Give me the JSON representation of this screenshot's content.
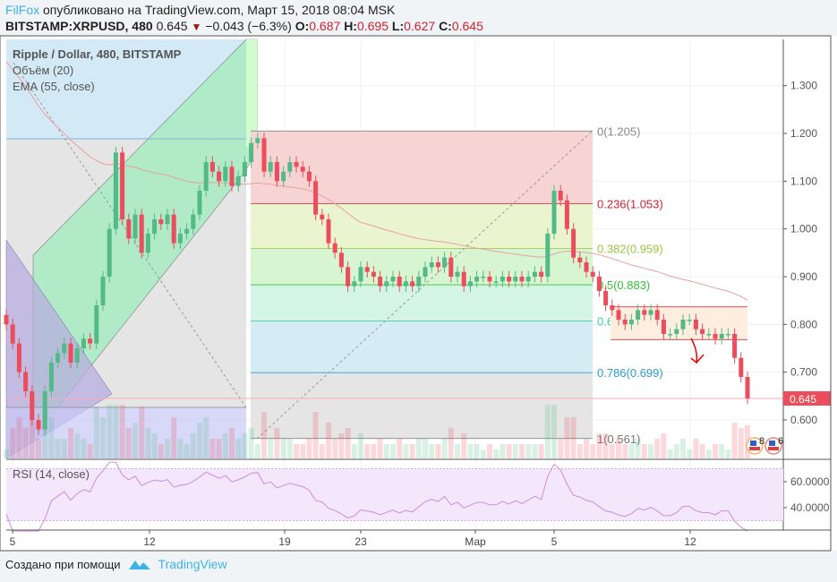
{
  "header": {
    "author": "FilFox",
    "published": "опубликовано на TradingView.com, Март 15, 2018 08:04 MSK",
    "symbol": "BITSTAMP:XRPUSD, 480",
    "last": "0.645",
    "change": "−0.043 (−6.3%)",
    "o_label": "O:",
    "o": "0.687",
    "h_label": "H:",
    "h": "0.695",
    "l_label": "L:",
    "l": "0.627",
    "c_label": "C:",
    "c": "0.645"
  },
  "legend": {
    "title": "Ripple / Dollar, 480, BITSTAMP",
    "volume": "Объём (20)",
    "ema": "EMA (55, close)",
    "rsi": "RSI (14, close)"
  },
  "footer": {
    "created": "Создано при помощи",
    "brand": "TradingView"
  },
  "colors": {
    "up": "#53b987",
    "down": "#eb4d5c",
    "ema": "#e8a0a0",
    "rsi": "#c98de0",
    "accent": "#3bb3e4"
  },
  "chart_data": {
    "type": "candlestick",
    "interval": "480",
    "price_axis": {
      "ticks": [
        "1.300",
        "1.200",
        "1.100",
        "1.000",
        "0.900",
        "0.800",
        "0.700",
        "0.600"
      ],
      "range": [
        0.52,
        1.38
      ],
      "last_label": "0.645"
    },
    "rsi_axis": {
      "ticks": [
        "60.0000",
        "40.0000"
      ],
      "bands": [
        30,
        70
      ]
    },
    "date_ticks": [
      "5",
      "12",
      "19",
      "23",
      "Мар",
      "5",
      "12"
    ],
    "closes": [
      0.8,
      0.76,
      0.7,
      0.66,
      0.6,
      0.58,
      0.66,
      0.72,
      0.74,
      0.76,
      0.72,
      0.75,
      0.77,
      0.76,
      0.84,
      0.9,
      1.0,
      1.16,
      1.02,
      0.98,
      1.03,
      0.95,
      0.99,
      1.02,
      1.01,
      1.03,
      0.97,
      0.99,
      1.0,
      1.03,
      1.08,
      1.14,
      1.12,
      1.1,
      1.13,
      1.09,
      1.11,
      1.14,
      1.18,
      1.19,
      1.12,
      1.14,
      1.1,
      1.12,
      1.14,
      1.13,
      1.12,
      1.1,
      1.03,
      1.02,
      0.97,
      0.95,
      0.92,
      0.88,
      0.89,
      0.92,
      0.91,
      0.9,
      0.88,
      0.89,
      0.9,
      0.88,
      0.89,
      0.88,
      0.9,
      0.92,
      0.93,
      0.92,
      0.94,
      0.9,
      0.91,
      0.88,
      0.89,
      0.9,
      0.9,
      0.89,
      0.89,
      0.9,
      0.89,
      0.9,
      0.89,
      0.9,
      0.91,
      0.9,
      0.99,
      1.08,
      1.06,
      1.0,
      0.94,
      0.93,
      0.91,
      0.9,
      0.87,
      0.84,
      0.83,
      0.81,
      0.8,
      0.81,
      0.83,
      0.82,
      0.83,
      0.81,
      0.78,
      0.78,
      0.79,
      0.81,
      0.81,
      0.79,
      0.78,
      0.78,
      0.77,
      0.78,
      0.78,
      0.73,
      0.69,
      0.645
    ],
    "fib_levels": [
      {
        "label": "0(1.205)",
        "price": 1.205,
        "color": "#888888"
      },
      {
        "label": "0.236(1.053)",
        "price": 1.053,
        "color": "#d0212d"
      },
      {
        "label": "0.382(0.959)",
        "price": 0.959,
        "color": "#9bc53d"
      },
      {
        "label": "0.5(0.883)",
        "price": 0.883,
        "color": "#36c236"
      },
      {
        "label": "0.618(0.807)",
        "price": 0.807,
        "color": "#3fcf9f"
      },
      {
        "label": "0.786(0.699)",
        "price": 0.699,
        "color": "#2f9bd0"
      },
      {
        "label": "1(0.561)",
        "price": 0.561,
        "color": "#777777"
      }
    ],
    "range_box": {
      "top": 0.837,
      "bottom": 0.768
    },
    "event_badges": [
      "8",
      "6"
    ]
  }
}
